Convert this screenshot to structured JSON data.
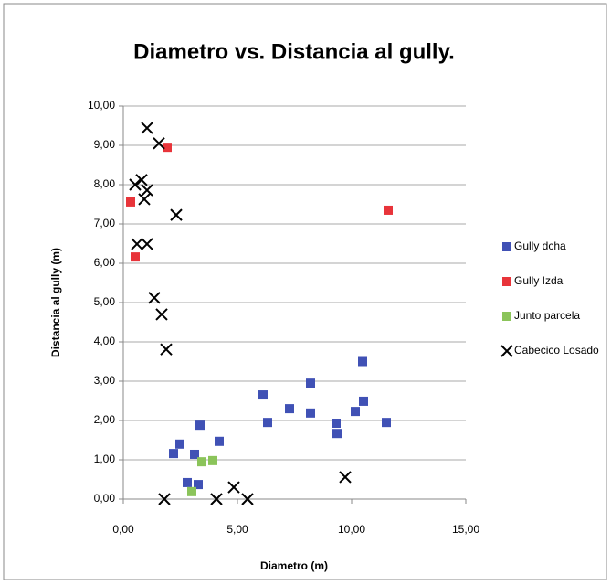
{
  "chart_data": {
    "type": "scatter",
    "title": "Diametro vs. Distancia al gully.",
    "xlabel": "Diametro (m)",
    "ylabel": "Distancia al gully (m)",
    "xlim": [
      0,
      15
    ],
    "ylim": [
      0,
      10
    ],
    "xticks": [
      {
        "value": 0,
        "label": "0,00"
      },
      {
        "value": 5,
        "label": "5,00"
      },
      {
        "value": 10,
        "label": "10,00"
      },
      {
        "value": 15,
        "label": "15,00"
      }
    ],
    "yticks": [
      {
        "value": 0,
        "label": "0,00"
      },
      {
        "value": 1,
        "label": "1,00"
      },
      {
        "value": 2,
        "label": "2,00"
      },
      {
        "value": 3,
        "label": "3,00"
      },
      {
        "value": 4,
        "label": "4,00"
      },
      {
        "value": 5,
        "label": "5,00"
      },
      {
        "value": 6,
        "label": "6,00"
      },
      {
        "value": 7,
        "label": "7,00"
      },
      {
        "value": 8,
        "label": "8,00"
      },
      {
        "value": 9,
        "label": "9,00"
      },
      {
        "value": 10,
        "label": "10,00"
      }
    ],
    "grid": true,
    "legend": "right",
    "series": [
      {
        "name": "Gully dcha",
        "color": "#4051b5",
        "marker": "square",
        "x": [
          2.2,
          2.48,
          3.12,
          3.36,
          4.2,
          2.8,
          3.28,
          6.12,
          6.32,
          7.28,
          8.2,
          8.2,
          9.32,
          9.36,
          10.16,
          10.52,
          10.48,
          11.52
        ],
        "values": [
          1.16,
          1.4,
          1.14,
          1.88,
          1.47,
          0.42,
          0.37,
          2.65,
          1.95,
          2.3,
          2.19,
          2.95,
          1.93,
          1.67,
          2.23,
          2.49,
          3.5,
          1.95
        ]
      },
      {
        "name": "Gully Izda",
        "color": "#e8343a",
        "marker": "square",
        "x": [
          1.92,
          0.32,
          0.52,
          11.6
        ],
        "values": [
          8.95,
          7.56,
          6.16,
          7.35
        ]
      },
      {
        "name": "Junto parcela",
        "color": "#8bc45a",
        "marker": "square",
        "x": [
          3.44,
          3.92,
          3.0
        ],
        "values": [
          0.95,
          0.98,
          0.19
        ]
      },
      {
        "name": "Cabecico Losado",
        "color": "#000000",
        "marker": "x",
        "x": [
          1.04,
          1.56,
          0.52,
          0.8,
          1.04,
          0.92,
          2.32,
          0.6,
          1.04,
          1.36,
          1.68,
          1.88,
          1.8,
          4.08,
          4.84,
          5.44,
          9.72
        ],
        "values": [
          9.44,
          9.05,
          8.0,
          8.12,
          7.86,
          7.63,
          7.23,
          6.49,
          6.49,
          5.12,
          4.7,
          3.81,
          0,
          0,
          0.3,
          0,
          0.56
        ]
      }
    ]
  }
}
